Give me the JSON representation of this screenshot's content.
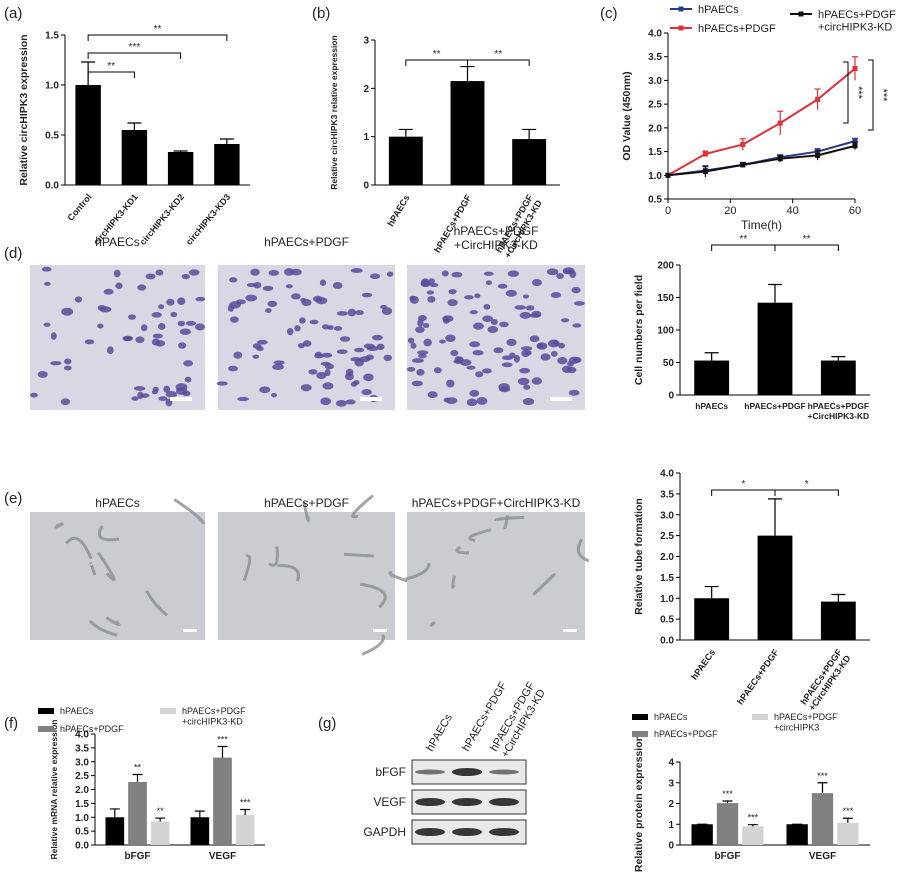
{
  "panel_labels": [
    "(a)",
    "(b)",
    "(c)",
    "(d)",
    "(e)",
    "(f)",
    "(g)"
  ],
  "micrographs": {
    "migration": [
      "hPAECs",
      "hPAECs+PDGF",
      "hPAECs+PDGF\n+CircHIPK3-KD"
    ],
    "tube": [
      "hPAECs",
      "hPAECs+PDGF",
      "hPAECs+PDGF+CircHIPK3-KD"
    ]
  },
  "blot": {
    "lanes": [
      "hPAECs",
      "hPAECs+PDGF",
      "hPAECs+PDGF\n+CircHIPK3-KD"
    ],
    "proteins": [
      "bFGF",
      "VEGF",
      "GAPDH"
    ]
  },
  "chart_data": [
    {
      "type": "bar",
      "y_label": "Relative circHIPK3 expression",
      "categories": [
        "Control",
        "circHIPK3-KD1",
        "circHIPK3-KD2",
        "circHIPK3-KD3"
      ],
      "values": [
        1.0,
        0.55,
        0.33,
        0.41
      ],
      "errors": [
        0.23,
        0.07,
        0.01,
        0.05
      ],
      "color": "#000000",
      "ylim": [
        0,
        1.5
      ],
      "yticks": [
        {
          "value": 0,
          "label": "0.0"
        },
        0.5,
        {
          "value": 1,
          "label": "1.0"
        },
        1.5
      ],
      "annotations": [
        "**",
        "***",
        "**"
      ]
    },
    {
      "type": "bar",
      "y_label": "Relative circHIPK3 relative expression",
      "categories": [
        "hPAECs",
        "hPAECs+PDGF",
        "hPAECs+PDGF\n+CircHIPK3-KD"
      ],
      "values": [
        1.0,
        2.15,
        0.95
      ],
      "errors": [
        0.15,
        0.3,
        0.2
      ],
      "color": "#000000",
      "ylim": [
        0,
        3
      ],
      "yticks": [
        0,
        1,
        2,
        3
      ],
      "annotations": [
        "**",
        "**"
      ]
    },
    {
      "type": "line",
      "x_label": "Time(h)",
      "y_label": "OD Value (450nm)",
      "x": [
        0,
        12,
        24,
        36,
        48,
        60
      ],
      "xlim": [
        0,
        60
      ],
      "xticks": [
        0,
        20,
        40,
        60
      ],
      "ylim": [
        0.5,
        4.0
      ],
      "yticks": [
        0.5,
        {
          "value": 1,
          "label": "1.0"
        },
        1.5,
        {
          "value": 2,
          "label": "2.0"
        },
        2.5,
        {
          "value": 3,
          "label": "3.0"
        },
        3.5,
        {
          "value": 4,
          "label": "4.0"
        }
      ],
      "series": [
        {
          "name": "hPAECs",
          "color": "#2b3990",
          "values": [
            1.0,
            1.1,
            1.22,
            1.38,
            1.5,
            1.72
          ],
          "errors": [
            0,
            0.08,
            0.04,
            0.05,
            0.06,
            0.06
          ]
        },
        {
          "name": "hPAECs+PDGF",
          "color": "#e0303a",
          "values": [
            1.0,
            1.45,
            1.65,
            2.1,
            2.6,
            3.25
          ],
          "errors": [
            0,
            0.06,
            0.12,
            0.25,
            0.22,
            0.25
          ]
        },
        {
          "name": "hPAECs+PDGF\n+circHIPK3-KD",
          "color": "#111111",
          "values": [
            1.0,
            1.08,
            1.22,
            1.35,
            1.42,
            1.62
          ],
          "errors": [
            0,
            0.12,
            0.05,
            0.07,
            0.1,
            0.08
          ]
        }
      ],
      "annotations": [
        "***",
        "***"
      ]
    },
    {
      "type": "bar",
      "y_label": "Cell numbers per field",
      "categories": [
        "hPAECs",
        "hPAECs+PDGF",
        "hPAECs+PDGF\n+CircHIPK3-KD"
      ],
      "values": [
        53,
        142,
        53
      ],
      "errors": [
        12,
        28,
        6
      ],
      "color": "#000000",
      "ylim": [
        0,
        200
      ],
      "yticks": [
        0,
        50,
        100,
        150,
        200
      ],
      "annotations": [
        "**",
        "**"
      ]
    },
    {
      "type": "bar",
      "y_label": "Relative tube formation",
      "categories": [
        "hPAECs",
        "hPAECs+PDGF",
        "hPAECs+PDGF\n+CircHIPK3-KD"
      ],
      "values": [
        1.0,
        2.5,
        0.92
      ],
      "errors": [
        0.28,
        0.88,
        0.17
      ],
      "color": "#000000",
      "ylim": [
        0,
        4
      ],
      "yticks": [
        {
          "value": 0,
          "label": "0.0"
        },
        0.5,
        {
          "value": 1,
          "label": "1.0"
        },
        1.5,
        {
          "value": 2,
          "label": "2.0"
        },
        2.5,
        {
          "value": 3,
          "label": "3.0"
        },
        3.5,
        {
          "value": 4,
          "label": "4.0"
        }
      ],
      "annotations": [
        "*",
        "*"
      ]
    },
    {
      "type": "grouped_bar",
      "y_label": "Relative  mRNA relative expression",
      "categories": [
        "bFGF",
        "VEGF"
      ],
      "ylim": [
        0,
        4
      ],
      "yticks": [
        {
          "value": 0,
          "label": "0.0"
        },
        0.5,
        {
          "value": 1,
          "label": "1.0"
        },
        1.5,
        {
          "value": 2,
          "label": "2.0"
        },
        2.5,
        {
          "value": 3,
          "label": "3.0"
        },
        3.5,
        {
          "value": 4,
          "label": "4.0"
        }
      ],
      "series": [
        {
          "name": "hPAECs",
          "color": "#000000",
          "values": [
            1.0,
            1.0
          ],
          "errors": [
            0.3,
            0.22
          ],
          "annotations": [
            null,
            null
          ]
        },
        {
          "name": "hPAECs+PDGF",
          "color": "#808080",
          "values": [
            2.27,
            3.15
          ],
          "errors": [
            0.27,
            0.4
          ],
          "annotations": [
            "**",
            "***"
          ]
        },
        {
          "name": "hPAECs+PDGF\n+circHIPK3-KD",
          "color": "#d3d3d3",
          "values": [
            0.85,
            1.08
          ],
          "errors": [
            0.12,
            0.2
          ],
          "annotations": [
            "**",
            "***"
          ]
        }
      ]
    },
    {
      "type": "grouped_bar",
      "y_label": "Relative protein expression",
      "categories": [
        "bFGF",
        "VEGF"
      ],
      "ylim": [
        0,
        4
      ],
      "yticks": [
        0,
        1,
        2,
        3,
        4
      ],
      "series": [
        {
          "name": "hPAECs",
          "color": "#000000",
          "values": [
            1,
            1
          ],
          "errors": [
            0,
            0
          ],
          "annotations": [
            null,
            null
          ]
        },
        {
          "name": "hPAECs+PDGF",
          "color": "#808080",
          "values": [
            2.02,
            2.5
          ],
          "errors": [
            0.1,
            0.5
          ],
          "annotations": [
            "***",
            "***"
          ]
        },
        {
          "name": "hPAECs+PDGF\n+circHIPK3",
          "color": "#d3d3d3",
          "values": [
            0.9,
            1.07
          ],
          "errors": [
            0.08,
            0.22
          ],
          "annotations": [
            "***",
            "***"
          ]
        }
      ]
    }
  ]
}
